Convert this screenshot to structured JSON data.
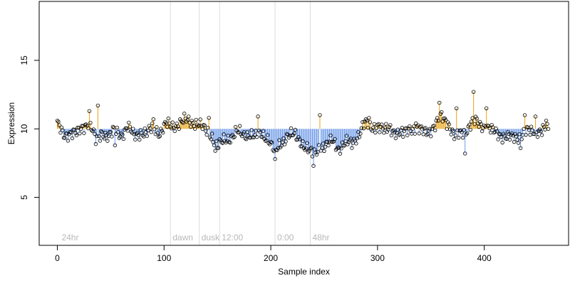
{
  "chart_data": {
    "type": "scatter",
    "xlabel": "Sample index",
    "ylabel": "Expression",
    "xlim": [
      -17,
      479
    ],
    "ylim": [
      1.5,
      19.3
    ],
    "x_ticks": [
      0,
      100,
      200,
      300,
      400
    ],
    "y_ticks": [
      5,
      10,
      15
    ],
    "baseline": 10,
    "grid": false,
    "colors": {
      "above": "#E8A317",
      "below": "#6F9BE8",
      "vline": "#DCDCDC",
      "annotation": "#B8B8B8",
      "point_edge": "#000000"
    },
    "annotations": [
      {
        "x": 2,
        "label": "24hr",
        "line": false
      },
      {
        "x": 106,
        "label": "dawn",
        "line": true
      },
      {
        "x": 133,
        "label": "dusk",
        "line": true
      },
      {
        "x": 152,
        "label": "12:00",
        "line": true
      },
      {
        "x": 204,
        "label": "0:00",
        "line": true
      },
      {
        "x": 237,
        "label": "48hr",
        "line": true
      }
    ],
    "series": [
      {
        "x": [
          0,
          6,
          12,
          18,
          24,
          30,
          36,
          42,
          48,
          54,
          60,
          66,
          72,
          78,
          84,
          90,
          96,
          102,
          108,
          114,
          120,
          126,
          132,
          138,
          144,
          150,
          156,
          162,
          168,
          174,
          180,
          186,
          192,
          198,
          204,
          210,
          216,
          222,
          228,
          234,
          240,
          246,
          252,
          258,
          264,
          270,
          276,
          282,
          288,
          294,
          300,
          306,
          312,
          318,
          324,
          330,
          336,
          342,
          348,
          354,
          360,
          366,
          372,
          378,
          384,
          390,
          396,
          402,
          408,
          414,
          420,
          426,
          432,
          438,
          444,
          450,
          456,
          460
        ],
        "values": [
          10.3,
          9.6,
          9.7,
          9.6,
          10.2,
          10.5,
          9.1,
          9.8,
          9.4,
          9.9,
          9.6,
          10.1,
          9.5,
          9.8,
          9.6,
          10.2,
          9.7,
          10.3,
          10.2,
          10.4,
          10.6,
          10.5,
          10.4,
          9.9,
          9.6,
          8.7,
          9.1,
          9.4,
          9.8,
          9.5,
          9.7,
          9.4,
          9.6,
          9.3,
          8.2,
          9.0,
          9.6,
          9.5,
          9.1,
          8.6,
          8.0,
          8.7,
          8.8,
          9.1,
          8.6,
          9.0,
          8.9,
          9.6,
          10.4,
          10.1,
          10.3,
          9.8,
          10.1,
          9.7,
          9.6,
          10.1,
          10.0,
          9.8,
          9.9,
          10.2,
          10.9,
          10.5,
          9.4,
          9.7,
          10.0,
          10.6,
          10.3,
          10.2,
          9.8,
          9.6,
          9.5,
          9.3,
          9.4,
          9.9,
          9.7,
          9.9,
          10.0,
          9.8
        ],
        "spikes": [
          {
            "x": 30,
            "value": 11.3
          },
          {
            "x": 38,
            "value": 11.7
          },
          {
            "x": 54,
            "value": 8.8
          },
          {
            "x": 90,
            "value": 10.7
          },
          {
            "x": 142,
            "value": 10.8
          },
          {
            "x": 148,
            "value": 8.4
          },
          {
            "x": 188,
            "value": 10.9
          },
          {
            "x": 204,
            "value": 7.8
          },
          {
            "x": 240,
            "value": 7.3
          },
          {
            "x": 246,
            "value": 11.0
          },
          {
            "x": 292,
            "value": 10.8
          },
          {
            "x": 336,
            "value": 10.4
          },
          {
            "x": 358,
            "value": 11.9
          },
          {
            "x": 374,
            "value": 11.5
          },
          {
            "x": 382,
            "value": 8.2
          },
          {
            "x": 390,
            "value": 12.7
          },
          {
            "x": 402,
            "value": 11.5
          },
          {
            "x": 434,
            "value": 8.6
          },
          {
            "x": 438,
            "value": 11.0
          },
          {
            "x": 448,
            "value": 10.9
          },
          {
            "x": 458,
            "value": 10.6
          }
        ]
      }
    ]
  }
}
